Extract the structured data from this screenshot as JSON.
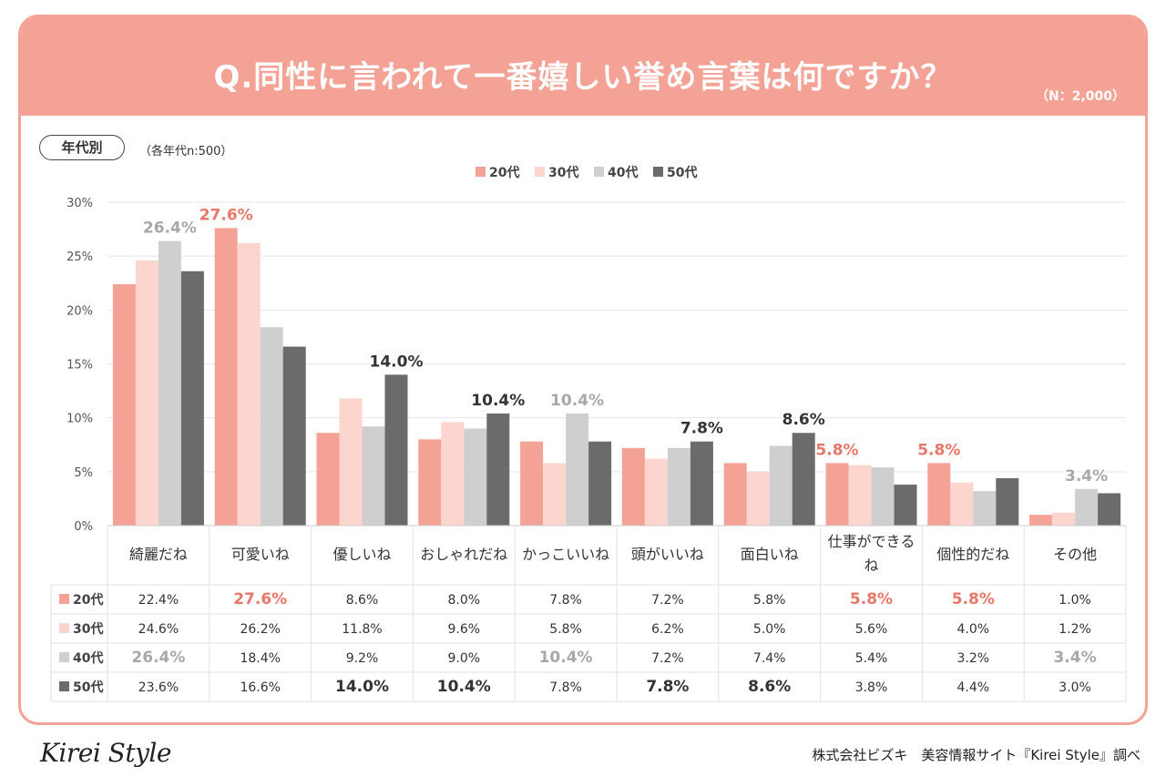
{
  "header": {
    "title": "Q.同性に言われて一番嬉しい誉め言葉は何ですか？",
    "sample_note": "（N：2,000）"
  },
  "filter": {
    "pill_label": "年代別",
    "group_note": "（各年代n:500）"
  },
  "colors": {
    "header_bg": "#f4a295",
    "series": [
      "#f4a295",
      "#fcd5cf",
      "#cfcfcf",
      "#6b6b6b"
    ],
    "highlight_20": "#e8776a",
    "highlight_40": "#a8a8a8",
    "highlight_50": "#333333"
  },
  "chart_data": {
    "type": "bar",
    "title": "Q.同性に言われて一番嬉しい誉め言葉は何ですか？",
    "categories": [
      "綺麗だね",
      "可愛いね",
      "優しいね",
      "おしゃれだね",
      "かっこいいね",
      "頭がいいね",
      "面白いね",
      "仕事ができるね",
      "個性的だね",
      "その他"
    ],
    "series": [
      {
        "name": "20代",
        "values": [
          22.4,
          27.6,
          8.6,
          8.0,
          7.8,
          7.2,
          5.8,
          5.8,
          5.8,
          1.0
        ]
      },
      {
        "name": "30代",
        "values": [
          24.6,
          26.2,
          11.8,
          9.6,
          5.8,
          6.2,
          5.0,
          5.6,
          4.0,
          1.2
        ]
      },
      {
        "name": "40代",
        "values": [
          26.4,
          18.4,
          9.2,
          9.0,
          10.4,
          7.2,
          7.4,
          5.4,
          3.2,
          3.4
        ]
      },
      {
        "name": "50代",
        "values": [
          23.6,
          16.6,
          14.0,
          10.4,
          7.8,
          7.8,
          8.6,
          3.8,
          4.4,
          3.0
        ]
      }
    ],
    "category_lines": [
      [
        "綺麗だね"
      ],
      [
        "可愛いね"
      ],
      [
        "優しいね"
      ],
      [
        "おしゃれだね"
      ],
      [
        "かっこいいね"
      ],
      [
        "頭がいいね"
      ],
      [
        "面白いね"
      ],
      [
        "仕事ができる",
        "ね"
      ],
      [
        "個性的だね"
      ],
      [
        "その他"
      ]
    ],
    "ylim": [
      0,
      30
    ],
    "yticks": [
      "0%",
      "5%",
      "10%",
      "15%",
      "20%",
      "25%",
      "30%"
    ],
    "ytick_values": [
      0,
      5,
      10,
      15,
      20,
      25,
      30
    ],
    "legend": [
      "20代",
      "30代",
      "40代",
      "50代"
    ],
    "legend_position": "top-center",
    "grid": true,
    "annotations": [
      {
        "series": 2,
        "category": 0,
        "text": "26.4%"
      },
      {
        "series": 0,
        "category": 1,
        "text": "27.6%"
      },
      {
        "series": 3,
        "category": 2,
        "text": "14.0%"
      },
      {
        "series": 3,
        "category": 3,
        "text": "10.4%"
      },
      {
        "series": 2,
        "category": 4,
        "text": "10.4%"
      },
      {
        "series": 3,
        "category": 5,
        "text": "7.8%"
      },
      {
        "series": 3,
        "category": 6,
        "text": "8.6%"
      },
      {
        "series": 0,
        "category": 7,
        "text": "5.8%"
      },
      {
        "series": 0,
        "category": 8,
        "text": "5.8%"
      },
      {
        "series": 2,
        "category": 9,
        "text": "3.4%"
      }
    ],
    "table_rows": [
      {
        "label": "20代",
        "cells": [
          "22.4%",
          "27.6%",
          "8.6%",
          "8.0%",
          "7.8%",
          "7.2%",
          "5.8%",
          "5.8%",
          "5.8%",
          "1.0%"
        ],
        "highlight": [
          1,
          7,
          8
        ]
      },
      {
        "label": "30代",
        "cells": [
          "24.6%",
          "26.2%",
          "11.8%",
          "9.6%",
          "5.8%",
          "6.2%",
          "5.0%",
          "5.6%",
          "4.0%",
          "1.2%"
        ],
        "highlight": []
      },
      {
        "label": "40代",
        "cells": [
          "26.4%",
          "18.4%",
          "9.2%",
          "9.0%",
          "10.4%",
          "7.2%",
          "7.4%",
          "5.4%",
          "3.2%",
          "3.4%"
        ],
        "highlight": [
          0,
          4,
          9
        ]
      },
      {
        "label": "50代",
        "cells": [
          "23.6%",
          "16.6%",
          "14.0%",
          "10.4%",
          "7.8%",
          "7.8%",
          "8.6%",
          "3.8%",
          "4.4%",
          "3.0%"
        ],
        "highlight": [
          2,
          3,
          5,
          6
        ]
      }
    ]
  },
  "footer": {
    "logo": "Kirei Style",
    "credit": "株式会社ビズキ　美容情報サイト『Kirei Style』調べ"
  }
}
